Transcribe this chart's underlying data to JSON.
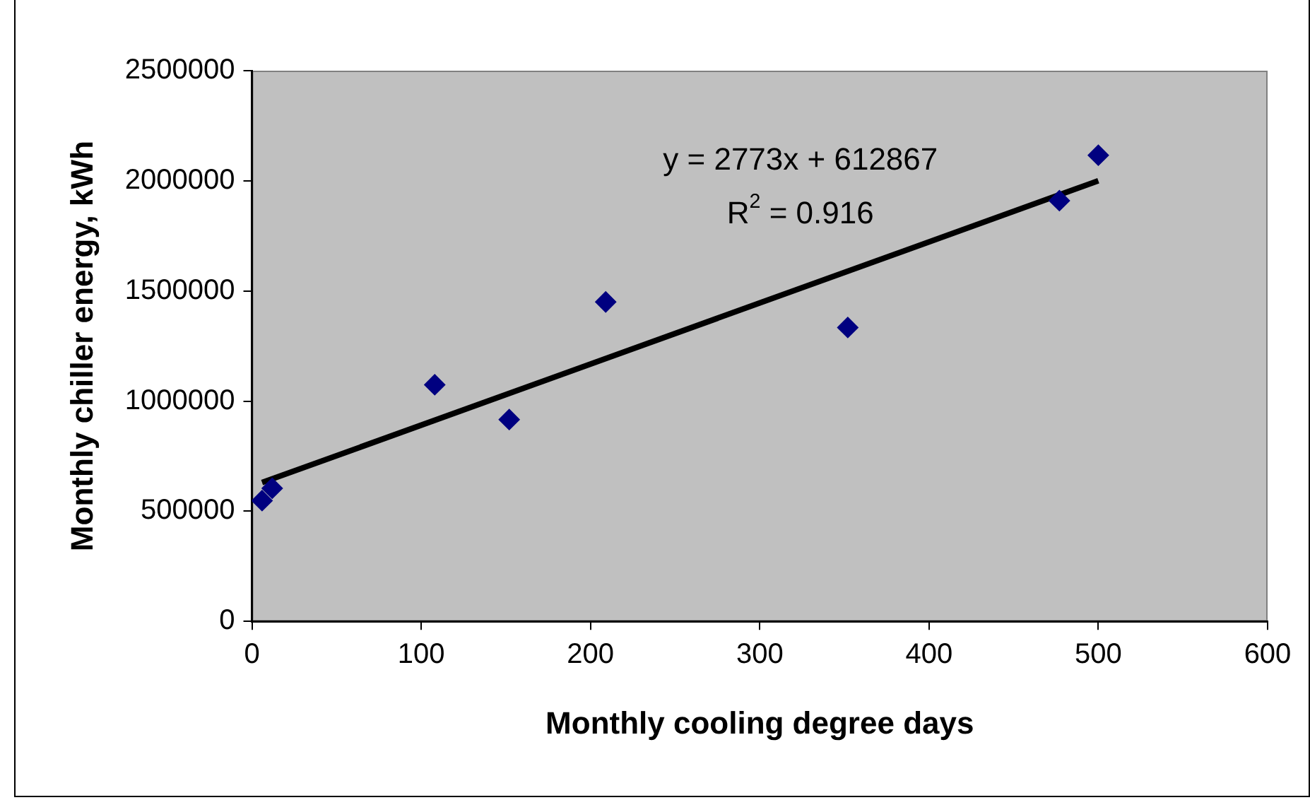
{
  "chart_data": {
    "type": "scatter",
    "xlabel": "Monthly cooling degree days",
    "ylabel": "Monthly chiller energy, kWh",
    "xlim": [
      0,
      600
    ],
    "xticks": [
      0,
      100,
      200,
      300,
      400,
      500,
      600
    ],
    "ylim": [
      0,
      2500000
    ],
    "yticks": [
      0,
      500000,
      1000000,
      1500000,
      2000000,
      2500000
    ],
    "grid": false,
    "legend": false,
    "marker": "diamond",
    "series": [
      {
        "color": "#000080",
        "x": [
          6,
          12,
          108,
          152,
          209,
          352,
          477,
          500
        ],
        "values": [
          548000,
          604000,
          1074000,
          916000,
          1450000,
          1334000,
          1910000,
          2116000
        ]
      },
      {
        "type": "line",
        "marker": "none",
        "color": "#000000",
        "x": [
          6,
          500
        ],
        "values": [
          630000,
          2000000
        ]
      }
    ],
    "annotations": [
      "y = 2773x + 612867",
      "R$^{2}$ = 0.916"
    ]
  }
}
